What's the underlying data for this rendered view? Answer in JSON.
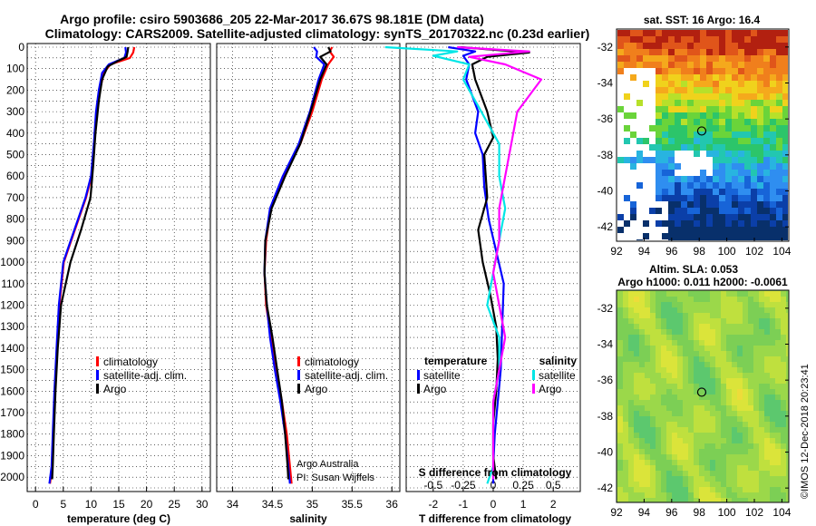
{
  "title_line1": "Argo profile: csiro 5903686_205 22-Mar-2017 36.67S 98.181E (DM data)",
  "title_line2": "Climatology: CARS2009. Satellite-adjusted climatology: synTS_20170322.nc (0.23d earlier)",
  "colors": {
    "climatology": "#ff0000",
    "satellite": "#0000ff",
    "argo": "#000000",
    "sal_satellite": "#00e6e6",
    "sal_argo": "#ff00ff"
  },
  "credit": {
    "line1": "Argo Australia",
    "line2": "PI: Susan Wijffels"
  },
  "watermark": "©IMOS 12-Dec-2018 20:23:41",
  "legend": {
    "climatology": "climatology",
    "satellite_adj": "satellite-adj. clim.",
    "argo": "Argo",
    "temperature_head": "temperature",
    "salinity_head": "salinity",
    "satellite": "satellite"
  },
  "map_sst": {
    "title": "sat. SST: 16 Argo: 16.4",
    "xticks": [
      "92",
      "94",
      "96",
      "98",
      "100",
      "102",
      "104"
    ],
    "yticks": [
      "-32",
      "-34",
      "-36",
      "-38",
      "-40",
      "-42"
    ],
    "marker_lon": 98.181,
    "marker_lat": -36.67
  },
  "map_sla": {
    "title1": "Altim. SLA: 0.053",
    "title2": "Argo h1000: 0.011 h2000: -0.0061",
    "xticks": [
      "92",
      "94",
      "96",
      "98",
      "100",
      "102",
      "104"
    ],
    "yticks": [
      "-32",
      "-34",
      "-36",
      "-38",
      "-40",
      "-42"
    ],
    "marker_lon": 98.181,
    "marker_lat": -36.67
  },
  "chart_data": [
    {
      "type": "line",
      "name": "temperature",
      "xlabel": "temperature (deg C)",
      "ylabel": "",
      "xlim": [
        -1.5,
        31.5
      ],
      "ylim": [
        0,
        2050
      ],
      "xticks": [
        "0",
        "5",
        "10",
        "15",
        "20",
        "25",
        "30"
      ],
      "yticks": [
        "0",
        "100",
        "200",
        "300",
        "400",
        "500",
        "600",
        "700",
        "800",
        "900",
        "1000",
        "1100",
        "1200",
        "1300",
        "1400",
        "1500",
        "1600",
        "1700",
        "1800",
        "1900",
        "2000"
      ],
      "series": [
        {
          "name": "climatology",
          "x": [
            17.8,
            17.6,
            17.0,
            13.5,
            12.3,
            11.6,
            11.0,
            10.6,
            10.1,
            9.1,
            7.1,
            5.1,
            4.3,
            3.9,
            3.5,
            3.2,
            3.0,
            2.6
          ],
          "y": [
            0,
            25,
            50,
            80,
            120,
            200,
            300,
            450,
            600,
            700,
            850,
            1000,
            1200,
            1400,
            1600,
            1800,
            1950,
            2030
          ]
        },
        {
          "name": "satellite",
          "x": [
            16.2,
            16.3,
            16.0,
            13.2,
            12.0,
            11.4,
            10.9,
            10.5,
            10.0,
            9.0,
            7.0,
            5.0,
            4.2,
            3.8,
            3.4,
            3.1,
            2.9,
            2.5
          ],
          "y": [
            0,
            25,
            50,
            80,
            120,
            200,
            300,
            450,
            600,
            700,
            850,
            1000,
            1200,
            1400,
            1600,
            1800,
            1950,
            2030
          ]
        },
        {
          "name": "Argo",
          "x": [
            16.7,
            16.6,
            16.4,
            14.8,
            13.0,
            12.0,
            11.4,
            10.8,
            10.4,
            9.9,
            8.2,
            6.3,
            4.6,
            4.0,
            3.6,
            3.3,
            3.1,
            3.0
          ],
          "y": [
            0,
            20,
            45,
            65,
            90,
            150,
            250,
            400,
            550,
            700,
            850,
            1000,
            1200,
            1400,
            1600,
            1800,
            1950,
            2010
          ]
        }
      ]
    },
    {
      "type": "line",
      "name": "salinity",
      "xlabel": "salinity",
      "xlim": [
        33.8,
        36.1
      ],
      "ylim": [
        0,
        2050
      ],
      "xticks": [
        "34",
        "34.5",
        "35",
        "35.5",
        "36"
      ],
      "series": [
        {
          "name": "climatology",
          "x": [
            35.25,
            35.22,
            35.27,
            35.2,
            35.12,
            35.0,
            34.85,
            34.65,
            34.48,
            34.42,
            34.4,
            34.42,
            34.48,
            34.55,
            34.62,
            34.68,
            34.72,
            34.74
          ],
          "y": [
            0,
            20,
            45,
            80,
            150,
            300,
            450,
            600,
            750,
            900,
            1050,
            1200,
            1350,
            1500,
            1650,
            1800,
            1950,
            2030
          ]
        },
        {
          "name": "satellite",
          "x": [
            35.02,
            35.06,
            35.05,
            35.15,
            35.08,
            34.97,
            34.83,
            34.63,
            34.47,
            34.41,
            34.4,
            34.43,
            34.47,
            34.53,
            34.6,
            34.66,
            34.7,
            34.72
          ],
          "y": [
            0,
            20,
            45,
            80,
            150,
            300,
            450,
            600,
            750,
            900,
            1050,
            1200,
            1350,
            1500,
            1650,
            1800,
            1950,
            2030
          ]
        },
        {
          "name": "Argo",
          "x": [
            35.2,
            35.23,
            35.1,
            35.18,
            35.1,
            34.98,
            34.85,
            34.66,
            34.49,
            34.41,
            34.4,
            34.43,
            34.5,
            34.56,
            34.62,
            34.66,
            34.69,
            34.7
          ],
          "y": [
            0,
            20,
            45,
            80,
            150,
            300,
            450,
            600,
            750,
            900,
            1050,
            1200,
            1350,
            1500,
            1650,
            1800,
            1950,
            2010
          ]
        }
      ]
    },
    {
      "type": "line",
      "name": "difference",
      "xlabel": "T difference from climatology",
      "xlim": [
        -2.9,
        2.9
      ],
      "ylim": [
        0,
        2050
      ],
      "xticks": [
        "-2",
        "-1",
        "0",
        "1",
        "2"
      ],
      "top_label": "S difference from climatology",
      "top_ticks": [
        "-0.5",
        "-0.25",
        "0",
        "0.25",
        "0.5"
      ],
      "series": [
        {
          "name": "T satellite",
          "x": [
            -1.5,
            -0.6,
            -1.0,
            -0.8,
            -0.9,
            -0.5,
            -0.6,
            -0.35,
            -0.3,
            -0.15,
            0.1,
            0.35,
            0.3,
            0.25,
            0.15,
            0.05,
            0.0,
            0.0
          ],
          "y": [
            0,
            20,
            40,
            80,
            150,
            300,
            400,
            500,
            650,
            800,
            950,
            1100,
            1300,
            1500,
            1650,
            1800,
            1950,
            2030
          ]
        },
        {
          "name": "T Argo",
          "x": [
            -1.1,
            1.2,
            -0.2,
            -0.7,
            -0.6,
            -0.2,
            0.0,
            -0.3,
            -0.2,
            -0.5,
            -0.35,
            -0.1,
            0.1,
            0.15,
            0.1,
            0.0,
            0.0,
            0.1
          ],
          "y": [
            0,
            25,
            45,
            80,
            150,
            300,
            420,
            500,
            700,
            850,
            1000,
            1150,
            1300,
            1450,
            1600,
            1750,
            1900,
            2010
          ]
        },
        {
          "name": "S satellite",
          "x": [
            -0.9,
            -0.3,
            -0.5,
            -0.2,
            -0.25,
            -0.1,
            0.05,
            0.05,
            0.1,
            0.05,
            0.0,
            -0.05,
            0.05,
            0.05,
            0.0,
            0.0,
            0.0,
            -0.05
          ],
          "y": [
            0,
            20,
            40,
            80,
            150,
            300,
            450,
            600,
            750,
            900,
            1050,
            1200,
            1350,
            1500,
            1650,
            1800,
            1950,
            2030
          ]
        },
        {
          "name": "S Argo",
          "x": [
            -0.3,
            0.3,
            -0.2,
            0.1,
            0.4,
            0.2,
            0.15,
            0.1,
            0.05,
            0.05,
            0.0,
            0.05,
            0.1,
            0.05,
            0.0,
            0.0,
            0.0,
            0.0
          ],
          "y": [
            0,
            20,
            45,
            80,
            150,
            300,
            450,
            600,
            750,
            900,
            1050,
            1200,
            1350,
            1500,
            1650,
            1800,
            1950,
            2010
          ]
        }
      ]
    }
  ]
}
